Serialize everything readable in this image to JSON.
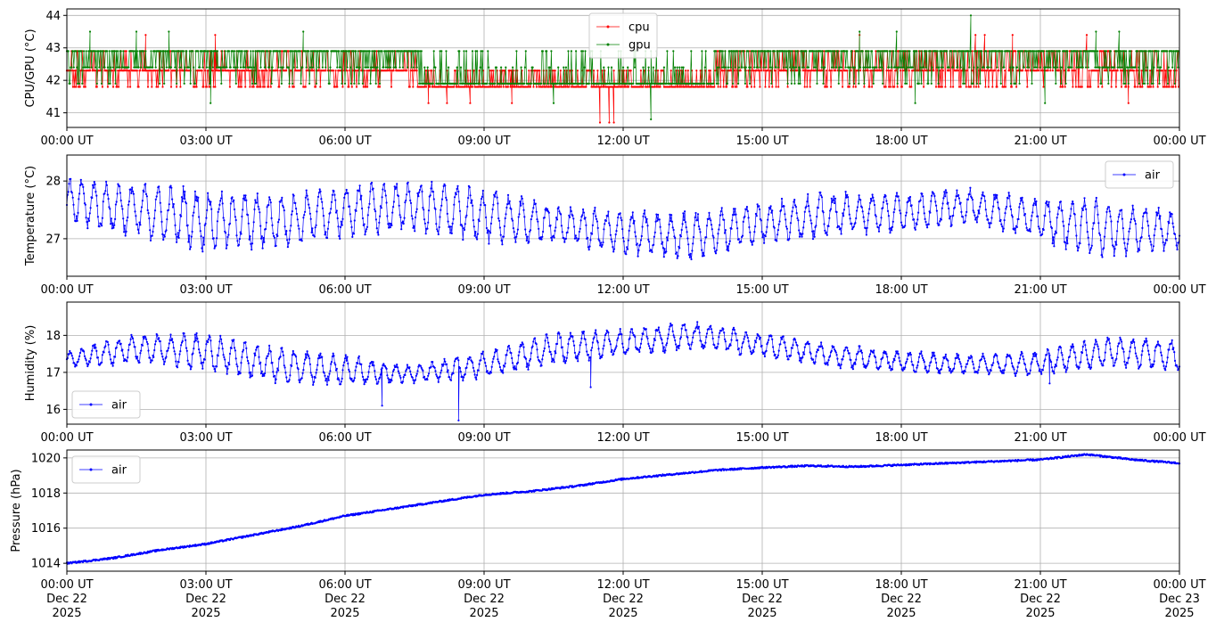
{
  "chart_data": [
    {
      "type": "line",
      "ylabel": "CPU/GPU (°C)",
      "ylim": [
        40.55,
        44.2
      ],
      "yticks": [
        41,
        42,
        43,
        44
      ],
      "grid": true,
      "legend": "top-center",
      "x_range": [
        "2025-12-22 00:00",
        "2025-12-23 00:00"
      ],
      "xticks": [
        "00:00 UT",
        "03:00 UT",
        "06:00 UT",
        "09:00 UT",
        "12:00 UT",
        "15:00 UT",
        "18:00 UT",
        "21:00 UT",
        "00:00 UT"
      ],
      "series": [
        {
          "name": "cpu",
          "color": "#ff0000",
          "levels": [
            41.8,
            42.3,
            42.9
          ],
          "segments": [
            {
              "from_hour": 0,
              "to_hour": 7.6,
              "level_indices": [
                1,
                2,
                0,
                1,
                1,
                2,
                1,
                0,
                1,
                1
              ]
            },
            {
              "from_hour": 7.6,
              "to_hour": 14.0,
              "level_indices": [
                0,
                0,
                1,
                0,
                0,
                1,
                0,
                0
              ]
            },
            {
              "from_hour": 14.0,
              "to_hour": 24,
              "level_indices": [
                1,
                2,
                0,
                1,
                2,
                1,
                0,
                1,
                2
              ]
            }
          ],
          "spikes": [
            {
              "time_hour": 1.7,
              "value": 43.4
            },
            {
              "time_hour": 3.2,
              "value": 43.4
            },
            {
              "time_hour": 7.8,
              "value": 41.3
            },
            {
              "time_hour": 8.2,
              "value": 41.3
            },
            {
              "time_hour": 8.7,
              "value": 41.3
            },
            {
              "time_hour": 9.6,
              "value": 41.3
            },
            {
              "time_hour": 11.5,
              "value": 40.7
            },
            {
              "time_hour": 11.7,
              "value": 40.7
            },
            {
              "time_hour": 11.8,
              "value": 40.7
            },
            {
              "time_hour": 17.1,
              "value": 43.4
            },
            {
              "time_hour": 19.6,
              "value": 43.4
            },
            {
              "time_hour": 19.8,
              "value": 43.4
            },
            {
              "time_hour": 20.4,
              "value": 43.4
            },
            {
              "time_hour": 22.0,
              "value": 43.4
            },
            {
              "time_hour": 22.9,
              "value": 41.3
            }
          ]
        },
        {
          "name": "gpu",
          "color": "#008000",
          "levels": [
            41.9,
            42.4,
            42.9
          ],
          "segments": [
            {
              "from_hour": 0,
              "to_hour": 7.6,
              "level_indices": [
                2,
                1,
                2,
                1,
                2,
                0,
                2,
                1,
                2
              ]
            },
            {
              "from_hour": 7.6,
              "to_hour": 14.0,
              "level_indices": [
                0,
                0,
                1,
                0,
                0,
                2,
                0,
                0
              ]
            },
            {
              "from_hour": 14.0,
              "to_hour": 24,
              "level_indices": [
                2,
                1,
                2,
                0,
                2,
                1,
                2,
                1,
                2
              ]
            }
          ],
          "spikes": [
            {
              "time_hour": 0.5,
              "value": 43.5
            },
            {
              "time_hour": 1.5,
              "value": 43.5
            },
            {
              "time_hour": 2.2,
              "value": 43.5
            },
            {
              "time_hour": 3.1,
              "value": 41.3
            },
            {
              "time_hour": 5.1,
              "value": 43.5
            },
            {
              "time_hour": 10.5,
              "value": 41.3
            },
            {
              "time_hour": 12.6,
              "value": 40.8
            },
            {
              "time_hour": 17.1,
              "value": 43.5
            },
            {
              "time_hour": 17.9,
              "value": 43.5
            },
            {
              "time_hour": 18.3,
              "value": 41.3
            },
            {
              "time_hour": 19.5,
              "value": 44.0
            },
            {
              "time_hour": 21.1,
              "value": 41.3
            },
            {
              "time_hour": 22.2,
              "value": 43.5
            },
            {
              "time_hour": 22.7,
              "value": 43.5
            }
          ]
        }
      ]
    },
    {
      "type": "line",
      "ylabel": "Temperature (°C)",
      "ylim": [
        26.35,
        28.45
      ],
      "yticks": [
        27,
        28
      ],
      "grid": true,
      "legend": "top-right",
      "x_range": [
        "2025-12-22 00:00",
        "2025-12-23 00:00"
      ],
      "xticks": [
        "00:00 UT",
        "03:00 UT",
        "06:00 UT",
        "09:00 UT",
        "12:00 UT",
        "15:00 UT",
        "18:00 UT",
        "21:00 UT",
        "00:00 UT"
      ],
      "series": [
        {
          "name": "air",
          "color": "#0000ff",
          "oscillation_period_hours": 0.27,
          "hour": [
            0,
            1.5,
            3,
            4.5,
            6,
            7.5,
            9,
            10.5,
            12,
            13.5,
            15,
            16.5,
            18,
            19.5,
            21,
            22.5,
            24
          ],
          "upper": [
            28.1,
            28.0,
            27.9,
            27.8,
            27.95,
            28.05,
            27.9,
            27.6,
            27.5,
            27.5,
            27.65,
            27.85,
            27.8,
            27.9,
            27.75,
            27.7,
            27.5
          ],
          "lower": [
            27.2,
            27.0,
            26.75,
            26.8,
            27.0,
            27.1,
            26.9,
            26.9,
            26.7,
            26.6,
            26.9,
            27.0,
            27.1,
            27.25,
            26.9,
            26.65,
            26.8
          ]
        }
      ]
    },
    {
      "type": "line",
      "ylabel": "Humidity (%)",
      "ylim": [
        15.6,
        18.9
      ],
      "yticks": [
        16,
        17,
        18
      ],
      "grid": true,
      "legend": "bottom-left",
      "x_range": [
        "2025-12-22 00:00",
        "2025-12-23 00:00"
      ],
      "xticks": [
        "00:00 UT",
        "03:00 UT",
        "06:00 UT",
        "09:00 UT",
        "12:00 UT",
        "15:00 UT",
        "18:00 UT",
        "21:00 UT",
        "00:00 UT"
      ],
      "series": [
        {
          "name": "air",
          "color": "#0000ff",
          "oscillation_period_hours": 0.27,
          "hour": [
            0,
            1.5,
            3,
            4.5,
            6,
            7.5,
            9,
            10.5,
            12,
            13.5,
            15,
            16.5,
            18,
            19.5,
            21,
            22.5,
            24
          ],
          "upper": [
            17.6,
            18.1,
            18.1,
            17.7,
            17.5,
            17.2,
            17.6,
            18.1,
            18.2,
            18.4,
            18.1,
            17.8,
            17.6,
            17.5,
            17.6,
            18.0,
            17.9
          ],
          "lower": [
            17.1,
            17.2,
            17.0,
            16.7,
            16.6,
            16.7,
            16.8,
            17.2,
            17.4,
            17.6,
            17.4,
            17.1,
            17.0,
            16.9,
            16.9,
            17.1,
            17.0
          ],
          "spikes": [
            {
              "time_hour": 6.8,
              "value": 16.1
            },
            {
              "time_hour": 8.45,
              "value": 15.7
            },
            {
              "time_hour": 11.3,
              "value": 16.6
            },
            {
              "time_hour": 21.2,
              "value": 16.7
            }
          ]
        }
      ]
    },
    {
      "type": "line",
      "ylabel": "Pressure (hPa)",
      "ylim": [
        1013.55,
        1020.45
      ],
      "yticks": [
        1014,
        1016,
        1018,
        1020
      ],
      "grid": true,
      "legend": "top-left",
      "x_range": [
        "2025-12-22 00:00",
        "2025-12-23 00:00"
      ],
      "xticks": [
        "00:00 UT\nDec 22\n2025",
        "03:00 UT\nDec 22\n2025",
        "06:00 UT\nDec 22\n2025",
        "09:00 UT\nDec 22\n2025",
        "12:00 UT\nDec 22\n2025",
        "15:00 UT\nDec 22\n2025",
        "18:00 UT\nDec 22\n2025",
        "21:00 UT\nDec 22\n2025",
        "00:00 UT\nDec 23\n2025"
      ],
      "series": [
        {
          "name": "air",
          "color": "#0000ff",
          "hour": [
            0,
            1,
            2,
            3,
            4,
            5,
            6,
            7,
            8,
            9,
            10,
            11,
            12,
            13,
            14,
            15,
            16,
            17,
            18,
            19,
            20,
            21,
            22,
            23,
            24
          ],
          "values": [
            1014.0,
            1014.3,
            1014.75,
            1015.1,
            1015.6,
            1016.1,
            1016.7,
            1017.1,
            1017.5,
            1017.9,
            1018.1,
            1018.4,
            1018.8,
            1019.05,
            1019.3,
            1019.45,
            1019.55,
            1019.5,
            1019.6,
            1019.7,
            1019.8,
            1019.9,
            1020.2,
            1019.9,
            1019.7
          ]
        }
      ]
    }
  ]
}
